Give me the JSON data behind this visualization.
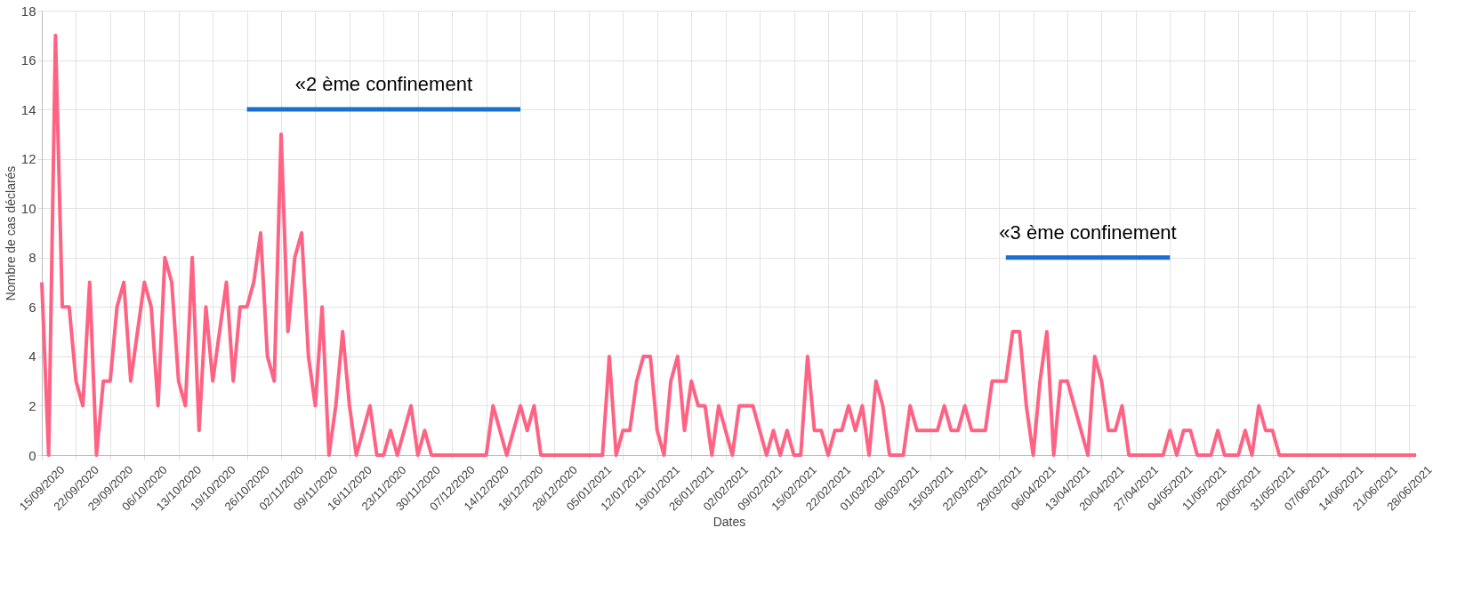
{
  "chart_data": {
    "type": "line",
    "xlabel": "Dates",
    "ylabel": "Nombre de cas déclarés",
    "categories": [
      "15/09/2020",
      null,
      null,
      null,
      null,
      "22/09/2020",
      null,
      null,
      null,
      null,
      "29/09/2020",
      null,
      null,
      null,
      null,
      "06/10/2020",
      null,
      null,
      null,
      null,
      "13/10/2020",
      null,
      null,
      null,
      null,
      "19/10/2020",
      null,
      null,
      null,
      null,
      "26/10/2020",
      null,
      null,
      null,
      null,
      "02/11/2020",
      null,
      null,
      null,
      null,
      "09/11/2020",
      null,
      null,
      null,
      null,
      "16/11/2020",
      null,
      null,
      null,
      null,
      "23/11/2020",
      null,
      null,
      null,
      null,
      "30/11/2020",
      null,
      null,
      null,
      null,
      "07/12/2020",
      null,
      null,
      null,
      null,
      "14/12/2020",
      null,
      null,
      null,
      null,
      "18/12/2020",
      null,
      null,
      null,
      null,
      "28/12/2020",
      null,
      null,
      null,
      null,
      "05/01/2021",
      null,
      null,
      null,
      null,
      "12/01/2021",
      null,
      null,
      null,
      null,
      "19/01/2021",
      null,
      null,
      null,
      null,
      "26/01/2021",
      null,
      null,
      null,
      null,
      "02/02/2021",
      null,
      null,
      null,
      null,
      "09/02/2021",
      null,
      null,
      null,
      null,
      "15/02/2021",
      null,
      null,
      null,
      null,
      "22/02/2021",
      null,
      null,
      null,
      null,
      "01/03/2021",
      null,
      null,
      null,
      null,
      "08/03/2021",
      null,
      null,
      null,
      null,
      "15/03/2021",
      null,
      null,
      null,
      null,
      "22/03/2021",
      null,
      null,
      null,
      null,
      "29/03/2021",
      null,
      null,
      null,
      null,
      "06/04/2021",
      null,
      null,
      null,
      null,
      "13/04/2021",
      null,
      null,
      null,
      null,
      "20/04/2021",
      null,
      null,
      null,
      null,
      "27/04/2021",
      null,
      null,
      null,
      null,
      "04/05/2021",
      null,
      null,
      null,
      null,
      "11/05/2021",
      null,
      null,
      null,
      null,
      "20/05/2021",
      null,
      null,
      null,
      null,
      "31/05/2021",
      null,
      null,
      null,
      null,
      "07/06/2021",
      null,
      null,
      null,
      null,
      "14/06/2021",
      null,
      null,
      null,
      null,
      "21/06/2021",
      null,
      null,
      null,
      null,
      "28/06/2021",
      null
    ],
    "series": [
      {
        "color": "#ff6384",
        "values": [
          7,
          0,
          17,
          6,
          6,
          3,
          2,
          7,
          0,
          3,
          3,
          6,
          7,
          3,
          5,
          7,
          6,
          2,
          8,
          7,
          3,
          2,
          8,
          1,
          6,
          3,
          5,
          7,
          3,
          6,
          6,
          7,
          9,
          4,
          3,
          13,
          5,
          8,
          9,
          4,
          2,
          6,
          0,
          2,
          5,
          2,
          0,
          1,
          2,
          0,
          0,
          1,
          0,
          1,
          2,
          0,
          1,
          0,
          0,
          0,
          0,
          0,
          0,
          0,
          0,
          0,
          2,
          1,
          0,
          1,
          2,
          1,
          2,
          0,
          0,
          0,
          0,
          0,
          0,
          0,
          0,
          0,
          0,
          4,
          0,
          1,
          1,
          3,
          4,
          4,
          1,
          0,
          3,
          4,
          1,
          3,
          2,
          2,
          0,
          2,
          1,
          0,
          2,
          2,
          2,
          1,
          0,
          1,
          0,
          1,
          0,
          0,
          4,
          1,
          1,
          0,
          1,
          1,
          2,
          1,
          2,
          0,
          3,
          2,
          0,
          0,
          0,
          2,
          1,
          1,
          1,
          1,
          2,
          1,
          1,
          2,
          1,
          1,
          1,
          3,
          3,
          3,
          5,
          5,
          2,
          0,
          3,
          5,
          0,
          3,
          3,
          2,
          1,
          0,
          4,
          3,
          1,
          1,
          2,
          0,
          0,
          0,
          0,
          0,
          0,
          1,
          0,
          1,
          1,
          0,
          0,
          0,
          1,
          0,
          0,
          0,
          1,
          0,
          2,
          1,
          1,
          0,
          0,
          0,
          0,
          0,
          0,
          0,
          0,
          0,
          0,
          0,
          0,
          0,
          0,
          0,
          0,
          0,
          0,
          0,
          0,
          0
        ]
      },
      {
        "type": "line",
        "name": "«2 ème confinement",
        "color": "#1a6fcc",
        "values": [
          null,
          null,
          null,
          null,
          null,
          null,
          null,
          null,
          null,
          null,
          null,
          null,
          null,
          null,
          null,
          null,
          null,
          null,
          null,
          null,
          null,
          null,
          null,
          null,
          null,
          null,
          null,
          null,
          null,
          null,
          14,
          14,
          14,
          14,
          14,
          14,
          14,
          14,
          14,
          14,
          14,
          14,
          14,
          14,
          14,
          14,
          14,
          14,
          14,
          14,
          14,
          14,
          14,
          14,
          14,
          14,
          14,
          14,
          14,
          14,
          14,
          14,
          14,
          14,
          14,
          14,
          14,
          14,
          14,
          14,
          14,
          null,
          null,
          null,
          null,
          null,
          null,
          null,
          null,
          null,
          null,
          null,
          null,
          null,
          null,
          null,
          null,
          null,
          null,
          null,
          null,
          null,
          null,
          null,
          null,
          null,
          null,
          null,
          null,
          null,
          null,
          null,
          null,
          null,
          null,
          null,
          null,
          null,
          null,
          null,
          null,
          null,
          null,
          null,
          null,
          null,
          null,
          null,
          null,
          null,
          null,
          null,
          null,
          null,
          null,
          null,
          null,
          null,
          null,
          null,
          null,
          null,
          null,
          null,
          null,
          null,
          null,
          null,
          null,
          null,
          null,
          null,
          null,
          null,
          null,
          null,
          null,
          null,
          null,
          null,
          null,
          null,
          null,
          null,
          null,
          null,
          null,
          null,
          null,
          null,
          null,
          null,
          null,
          null,
          null,
          null,
          null,
          null,
          null,
          null,
          null,
          null,
          null,
          null,
          null,
          null,
          null,
          null,
          null,
          null,
          null,
          null,
          null,
          null,
          null,
          null,
          null,
          null,
          null,
          null,
          null,
          null,
          null,
          null,
          null,
          null,
          null,
          null,
          null,
          null,
          null,
          null
        ]
      },
      {
        "type": "line",
        "name": "«3 ème confinement",
        "color": "#1a6fcc",
        "values": [
          null,
          null,
          null,
          null,
          null,
          null,
          null,
          null,
          null,
          null,
          null,
          null,
          null,
          null,
          null,
          null,
          null,
          null,
          null,
          null,
          null,
          null,
          null,
          null,
          null,
          null,
          null,
          null,
          null,
          null,
          null,
          null,
          null,
          null,
          null,
          null,
          null,
          null,
          null,
          null,
          null,
          null,
          null,
          null,
          null,
          null,
          null,
          null,
          null,
          null,
          null,
          null,
          null,
          null,
          null,
          null,
          null,
          null,
          null,
          null,
          null,
          null,
          null,
          null,
          null,
          null,
          null,
          null,
          null,
          null,
          null,
          null,
          null,
          null,
          null,
          null,
          null,
          null,
          null,
          null,
          null,
          null,
          null,
          null,
          null,
          null,
          null,
          null,
          null,
          null,
          null,
          null,
          null,
          null,
          null,
          null,
          null,
          null,
          null,
          null,
          null,
          null,
          null,
          null,
          null,
          null,
          null,
          null,
          null,
          null,
          null,
          null,
          null,
          null,
          null,
          null,
          null,
          null,
          null,
          null,
          null,
          null,
          null,
          null,
          null,
          null,
          null,
          null,
          null,
          null,
          null,
          null,
          null,
          null,
          null,
          null,
          null,
          null,
          null,
          null,
          null,
          8,
          8,
          8,
          8,
          8,
          8,
          8,
          8,
          8,
          8,
          8,
          8,
          8,
          8,
          8,
          8,
          8,
          8,
          8,
          8,
          8,
          8,
          8,
          8,
          8,
          null,
          null,
          null,
          null,
          null,
          null,
          null,
          null,
          null,
          null,
          null,
          null,
          null,
          null,
          null,
          null,
          null,
          null,
          null,
          null,
          null,
          null,
          null,
          null,
          null,
          null,
          null,
          null,
          null,
          null,
          null,
          null,
          null,
          null,
          null,
          null
        ]
      }
    ],
    "ylim": [
      0,
      18
    ],
    "yticks": [
      0,
      2,
      4,
      6,
      8,
      10,
      12,
      14,
      16,
      18
    ],
    "grid": true,
    "line_style": "solid",
    "marker": "none"
  }
}
